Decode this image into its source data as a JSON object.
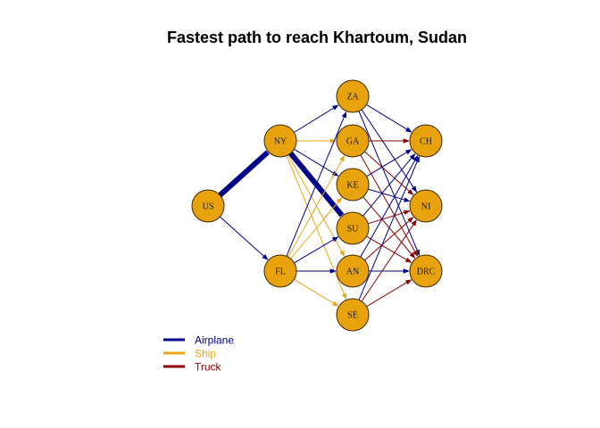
{
  "title": "Fastest path to reach Khartoum, Sudan",
  "colors": {
    "airplane": "#00008b",
    "ship": "#e8a817",
    "truck": "#8b0000",
    "node_fill": "#e8a20c",
    "node_stroke": "#3a2a00"
  },
  "nodes": [
    {
      "id": "US",
      "label": "US"
    },
    {
      "id": "NY",
      "label": "NY"
    },
    {
      "id": "FL",
      "label": "FL"
    },
    {
      "id": "ZA",
      "label": "ZA"
    },
    {
      "id": "GA",
      "label": "GA"
    },
    {
      "id": "KE",
      "label": "KE"
    },
    {
      "id": "SU",
      "label": "SU"
    },
    {
      "id": "AN",
      "label": "AN"
    },
    {
      "id": "SE",
      "label": "SE"
    },
    {
      "id": "CH",
      "label": "CH"
    },
    {
      "id": "NI",
      "label": "NI"
    },
    {
      "id": "DRC",
      "label": "DRC"
    }
  ],
  "edges": [
    {
      "from": "US",
      "to": "NY",
      "mode": "airplane",
      "highlight": true
    },
    {
      "from": "US",
      "to": "FL",
      "mode": "airplane",
      "highlight": false
    },
    {
      "from": "NY",
      "to": "ZA",
      "mode": "airplane",
      "highlight": false
    },
    {
      "from": "NY",
      "to": "GA",
      "mode": "ship",
      "highlight": false
    },
    {
      "from": "NY",
      "to": "KE",
      "mode": "airplane",
      "highlight": false
    },
    {
      "from": "NY",
      "to": "SU",
      "mode": "airplane",
      "highlight": true
    },
    {
      "from": "NY",
      "to": "AN",
      "mode": "ship",
      "highlight": false
    },
    {
      "from": "NY",
      "to": "SE",
      "mode": "ship",
      "highlight": false
    },
    {
      "from": "FL",
      "to": "ZA",
      "mode": "airplane",
      "highlight": false
    },
    {
      "from": "FL",
      "to": "GA",
      "mode": "ship",
      "highlight": false
    },
    {
      "from": "FL",
      "to": "KE",
      "mode": "ship",
      "highlight": false
    },
    {
      "from": "FL",
      "to": "SU",
      "mode": "airplane",
      "highlight": false
    },
    {
      "from": "FL",
      "to": "AN",
      "mode": "airplane",
      "highlight": false
    },
    {
      "from": "FL",
      "to": "SE",
      "mode": "ship",
      "highlight": false
    },
    {
      "from": "ZA",
      "to": "CH",
      "mode": "airplane",
      "highlight": false
    },
    {
      "from": "ZA",
      "to": "NI",
      "mode": "airplane",
      "highlight": false
    },
    {
      "from": "ZA",
      "to": "DRC",
      "mode": "airplane",
      "highlight": false
    },
    {
      "from": "GA",
      "to": "CH",
      "mode": "truck",
      "highlight": false
    },
    {
      "from": "GA",
      "to": "NI",
      "mode": "truck",
      "highlight": false
    },
    {
      "from": "GA",
      "to": "DRC",
      "mode": "truck",
      "highlight": false
    },
    {
      "from": "KE",
      "to": "CH",
      "mode": "airplane",
      "highlight": false
    },
    {
      "from": "KE",
      "to": "NI",
      "mode": "airplane",
      "highlight": false
    },
    {
      "from": "KE",
      "to": "DRC",
      "mode": "truck",
      "highlight": false
    },
    {
      "from": "SU",
      "to": "CH",
      "mode": "airplane",
      "highlight": false
    },
    {
      "from": "SU",
      "to": "NI",
      "mode": "truck",
      "highlight": false
    },
    {
      "from": "SU",
      "to": "DRC",
      "mode": "truck",
      "highlight": false
    },
    {
      "from": "AN",
      "to": "CH",
      "mode": "airplane",
      "highlight": false
    },
    {
      "from": "AN",
      "to": "NI",
      "mode": "truck",
      "highlight": false
    },
    {
      "from": "AN",
      "to": "DRC",
      "mode": "airplane",
      "highlight": false
    },
    {
      "from": "SE",
      "to": "CH",
      "mode": "airplane",
      "highlight": false
    },
    {
      "from": "SE",
      "to": "NI",
      "mode": "truck",
      "highlight": false
    },
    {
      "from": "SE",
      "to": "DRC",
      "mode": "truck",
      "highlight": false
    }
  ],
  "legend": [
    {
      "key": "airplane",
      "label": "Airplane"
    },
    {
      "key": "ship",
      "label": "Ship"
    },
    {
      "key": "truck",
      "label": "Truck"
    }
  ]
}
